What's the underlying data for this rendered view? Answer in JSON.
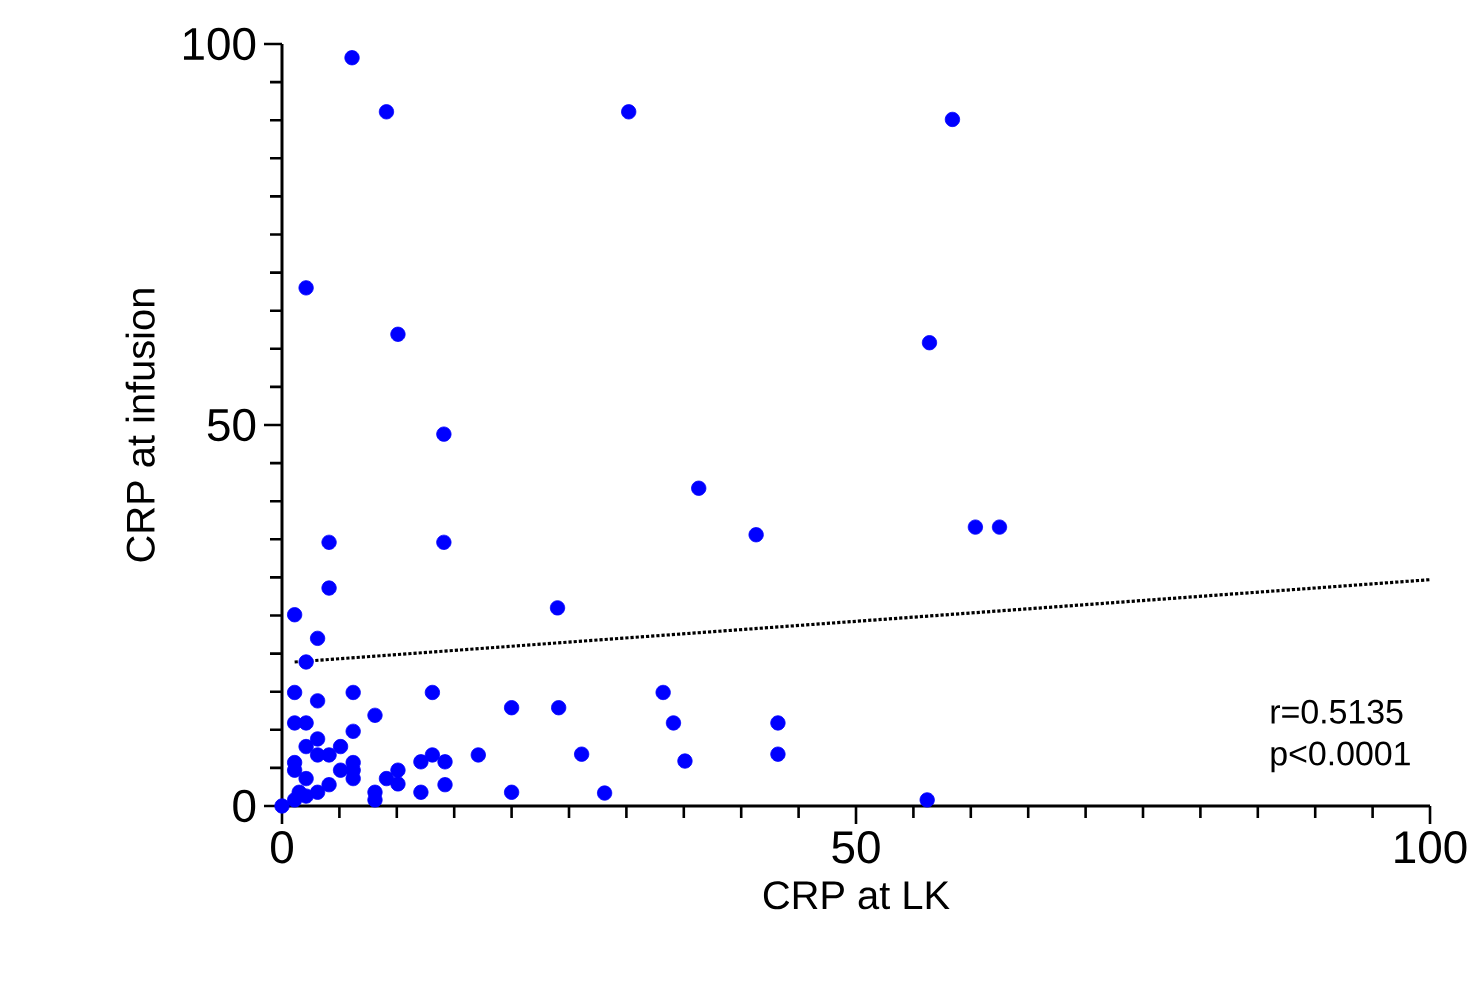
{
  "chart_data": {
    "type": "scatter",
    "xlabel": "CRP at LK",
    "ylabel": "CRP at infusion",
    "xlim": [
      0,
      100
    ],
    "ylim": [
      0,
      100
    ],
    "xticks": [
      0,
      {
        "value": 5,
        "label": null
      },
      {
        "value": 10,
        "label": null
      },
      {
        "value": 15,
        "label": null
      },
      {
        "value": 20,
        "label": null
      },
      {
        "value": 25,
        "label": null
      },
      {
        "value": 30,
        "label": null
      },
      {
        "value": 35,
        "label": null
      },
      {
        "value": 40,
        "label": null
      },
      {
        "value": 45,
        "label": null
      },
      50,
      {
        "value": 55,
        "label": null
      },
      {
        "value": 60,
        "label": null
      },
      {
        "value": 65,
        "label": null
      },
      {
        "value": 70,
        "label": null
      },
      {
        "value": 75,
        "label": null
      },
      {
        "value": 80,
        "label": null
      },
      {
        "value": 85,
        "label": null
      },
      {
        "value": 90,
        "label": null
      },
      {
        "value": 95,
        "label": null
      },
      100
    ],
    "yticks": [
      0,
      {
        "value": 5,
        "label": null
      },
      {
        "value": 10,
        "label": null
      },
      {
        "value": 15,
        "label": null
      },
      {
        "value": 20,
        "label": null
      },
      {
        "value": 25,
        "label": null
      },
      {
        "value": 30,
        "label": null
      },
      {
        "value": 35,
        "label": null
      },
      {
        "value": 40,
        "label": null
      },
      {
        "value": 45,
        "label": null
      },
      50,
      {
        "value": 55,
        "label": null
      },
      {
        "value": 60,
        "label": null
      },
      {
        "value": 65,
        "label": null
      },
      {
        "value": 70,
        "label": null
      },
      {
        "value": 75,
        "label": null
      },
      {
        "value": 80,
        "label": null
      },
      {
        "value": 85,
        "label": null
      },
      {
        "value": 90,
        "label": null
      },
      {
        "value": 95,
        "label": null
      },
      100
    ],
    "marker": "circle",
    "grid": false,
    "annotations": [
      "r=0.5135",
      "p<0.0001"
    ],
    "series": [
      {
        "color": "#0000ff",
        "x": [
          6.1,
          9.1,
          30.2,
          58.4,
          2.1,
          10.1,
          56.4,
          14.1,
          36.3,
          41.3,
          60.4,
          62.5,
          4.1,
          14.1,
          4.1,
          1.1,
          24.0,
          3.1,
          2.1,
          1.1,
          6.2,
          13.1,
          3.1,
          20.0,
          24.1,
          33.2,
          8.1,
          1.1,
          2.1,
          6.2,
          3.1,
          2.1,
          5.1,
          4.1,
          3.1,
          1.1,
          1.1,
          6.2,
          6.2,
          6.2,
          5.1,
          10.1,
          12.1,
          13.1,
          14.2,
          17.1,
          9.1,
          10.1,
          2.1,
          4.1,
          3.1,
          8.1,
          8.1,
          12.1,
          14.2,
          20.0,
          26.1,
          28.1,
          1.5,
          1.1,
          2.1,
          0,
          34.1,
          35.1,
          43.2,
          43.2,
          56.2
        ],
        "values": [
          98.2,
          91.1,
          91.1,
          90.1,
          68,
          61.9,
          60.8,
          48.8,
          41.7,
          35.6,
          36.6,
          36.6,
          34.6,
          34.6,
          28.6,
          25.1,
          26.0,
          22.0,
          18.9,
          14.9,
          14.9,
          14.9,
          13.8,
          12.9,
          12.9,
          14.9,
          11.9,
          10.9,
          10.9,
          9.8,
          8.8,
          7.8,
          7.8,
          6.7,
          6.7,
          5.7,
          4.7,
          5.7,
          4.7,
          3.6,
          4.7,
          4.7,
          5.8,
          6.7,
          5.8,
          6.7,
          3.6,
          2.9,
          3.6,
          2.8,
          1.8,
          1.8,
          0.8,
          1.8,
          2.8,
          1.8,
          6.8,
          1.7,
          1.8,
          0.8,
          1.3,
          0,
          10.9,
          5.9,
          10.9,
          6.8,
          0.8
        ]
      },
      {
        "type": "line",
        "color": "#000000",
        "line_style": "dotted",
        "marker": "none",
        "x": [
          1.1,
          100
        ],
        "values": [
          18.9,
          29.7
        ]
      }
    ]
  }
}
